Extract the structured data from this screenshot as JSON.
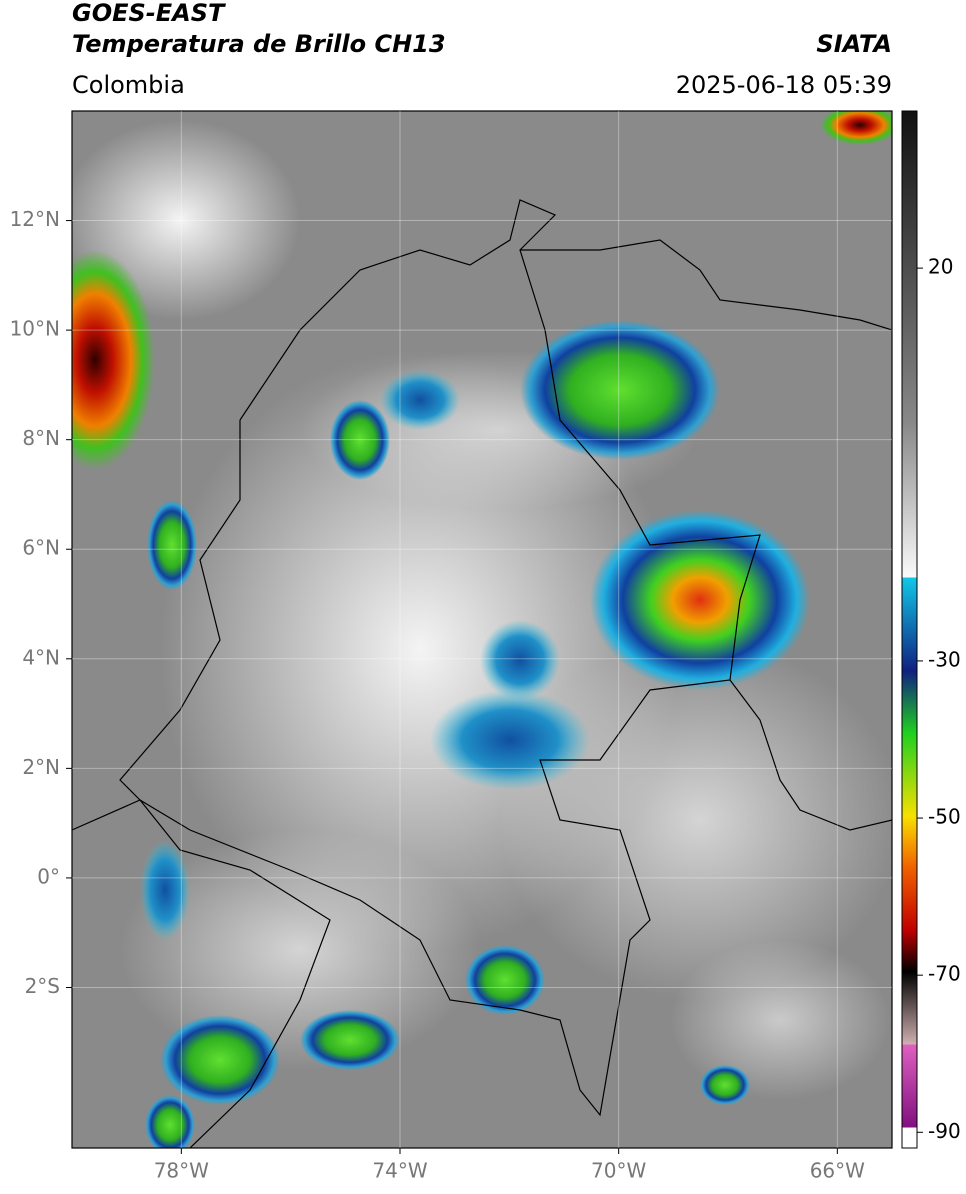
{
  "header": {
    "line1": "GOES-EAST",
    "line2": "Temperatura de Brillo CH13",
    "source": "SIATA",
    "region": "Colombia",
    "timestamp": "2025-06-18 05:39"
  },
  "map": {
    "xlim": [
      -80,
      -65
    ],
    "ylim": [
      -4.93,
      14
    ],
    "xticks": [
      {
        "value": -78,
        "label": "78°W"
      },
      {
        "value": -74,
        "label": "74°W"
      },
      {
        "value": -70,
        "label": "70°W"
      },
      {
        "value": -66,
        "label": "66°W"
      }
    ],
    "yticks": [
      {
        "value": 12,
        "label": "12°N"
      },
      {
        "value": 10,
        "label": "10°N"
      },
      {
        "value": 8,
        "label": "8°N"
      },
      {
        "value": 6,
        "label": "6°N"
      },
      {
        "value": 4,
        "label": "4°N"
      },
      {
        "value": 2,
        "label": "2°N"
      },
      {
        "value": 0,
        "label": "0°"
      },
      {
        "value": -2,
        "label": "2°S"
      }
    ]
  },
  "colorbar": {
    "lim": [
      -92,
      40
    ],
    "ticks": [
      20,
      -30,
      -50,
      -70,
      -90
    ]
  }
}
